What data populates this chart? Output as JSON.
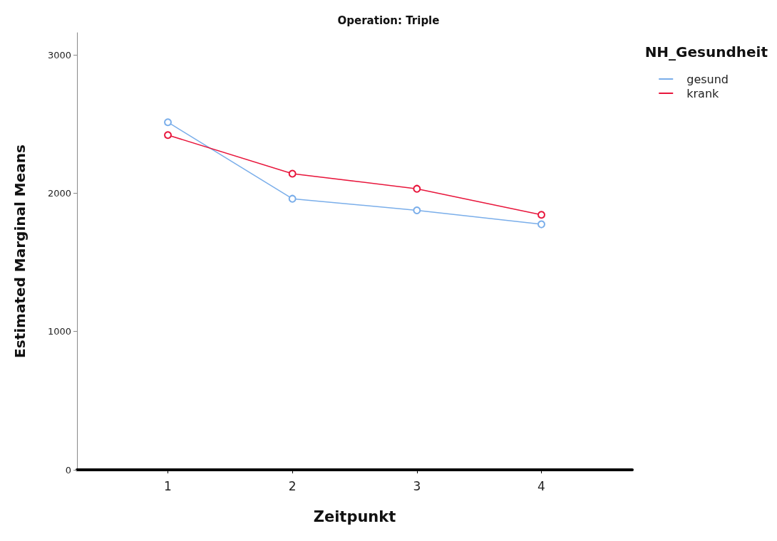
{
  "chart_data": {
    "type": "line",
    "title": "Operation: Triple",
    "xlabel": "Zeitpunkt",
    "ylabel": "Estimated Marginal Means",
    "legend_title": "NH_Gesundheit",
    "legend": "top right",
    "marker": "circle",
    "grid": false,
    "x": [
      1,
      2,
      3,
      4
    ],
    "xlim": [
      0.27,
      4.73
    ],
    "xticks": [
      1,
      2,
      3,
      4
    ],
    "ylim": [
      0,
      3160
    ],
    "yticks": [
      0,
      1000,
      2000,
      3000
    ],
    "series": [
      {
        "name": "gesund",
        "color": "#7aaeea",
        "values": [
          2513,
          1960,
          1876,
          1775
        ]
      },
      {
        "name": "krank",
        "color": "#e8163c",
        "values": [
          2420,
          2141,
          2032,
          1844
        ]
      }
    ]
  }
}
